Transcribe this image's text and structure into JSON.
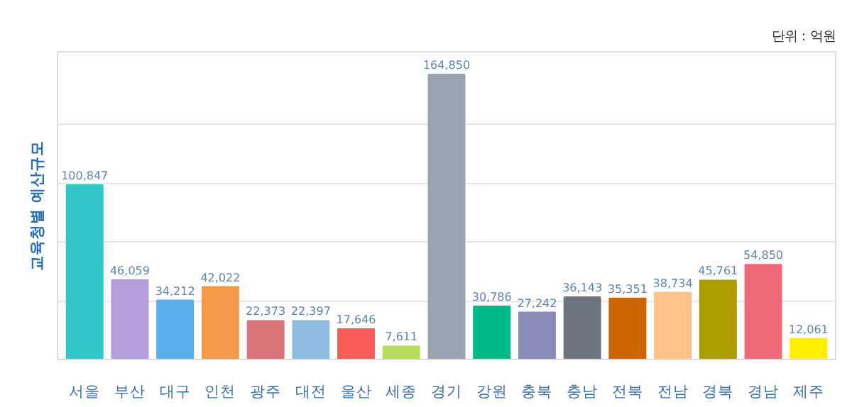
{
  "chart_data": {
    "type": "bar",
    "ylabel": "교육청별 예산규모",
    "annotations": [
      "단위 : 억원"
    ],
    "categories": [
      "서울",
      "부산",
      "대구",
      "인천",
      "광주",
      "대전",
      "울산",
      "세종",
      "경기",
      "강원",
      "충북",
      "충남",
      "전북",
      "전남",
      "경북",
      "경남",
      "제주"
    ],
    "values": [
      100847,
      46059,
      34212,
      42022,
      22373,
      22397,
      17646,
      7611,
      164850,
      30786,
      27242,
      36143,
      35351,
      38734,
      45761,
      54850,
      12061
    ],
    "colors": [
      "#33c6c6",
      "#b39ddb",
      "#5aaeea",
      "#f2994a",
      "#d9767c",
      "#90bde0",
      "#f85b57",
      "#b5dc5a",
      "#9aa3b0",
      "#00bb88",
      "#8a8ab8",
      "#6f7580",
      "#cc6600",
      "#fcc488",
      "#ad9c00",
      "#f0697a",
      "#fff000"
    ],
    "value_labels": [
      "100,847",
      "46,059",
      "34,212",
      "42,022",
      "22,373",
      "22,397",
      "17,646",
      "7,611",
      "164,850",
      "30,786",
      "27,242",
      "36,143",
      "35,351",
      "38,734",
      "45,761",
      "54,850",
      "12,061"
    ],
    "ylim": [
      0,
      178000
    ],
    "yticks": [
      {
        "value": 34000,
        "label": null
      },
      {
        "value": 68000,
        "label": null
      },
      {
        "value": 102000,
        "label": null
      },
      {
        "value": 136000,
        "label": null
      }
    ],
    "grid": "y",
    "tick_labels": "x"
  }
}
